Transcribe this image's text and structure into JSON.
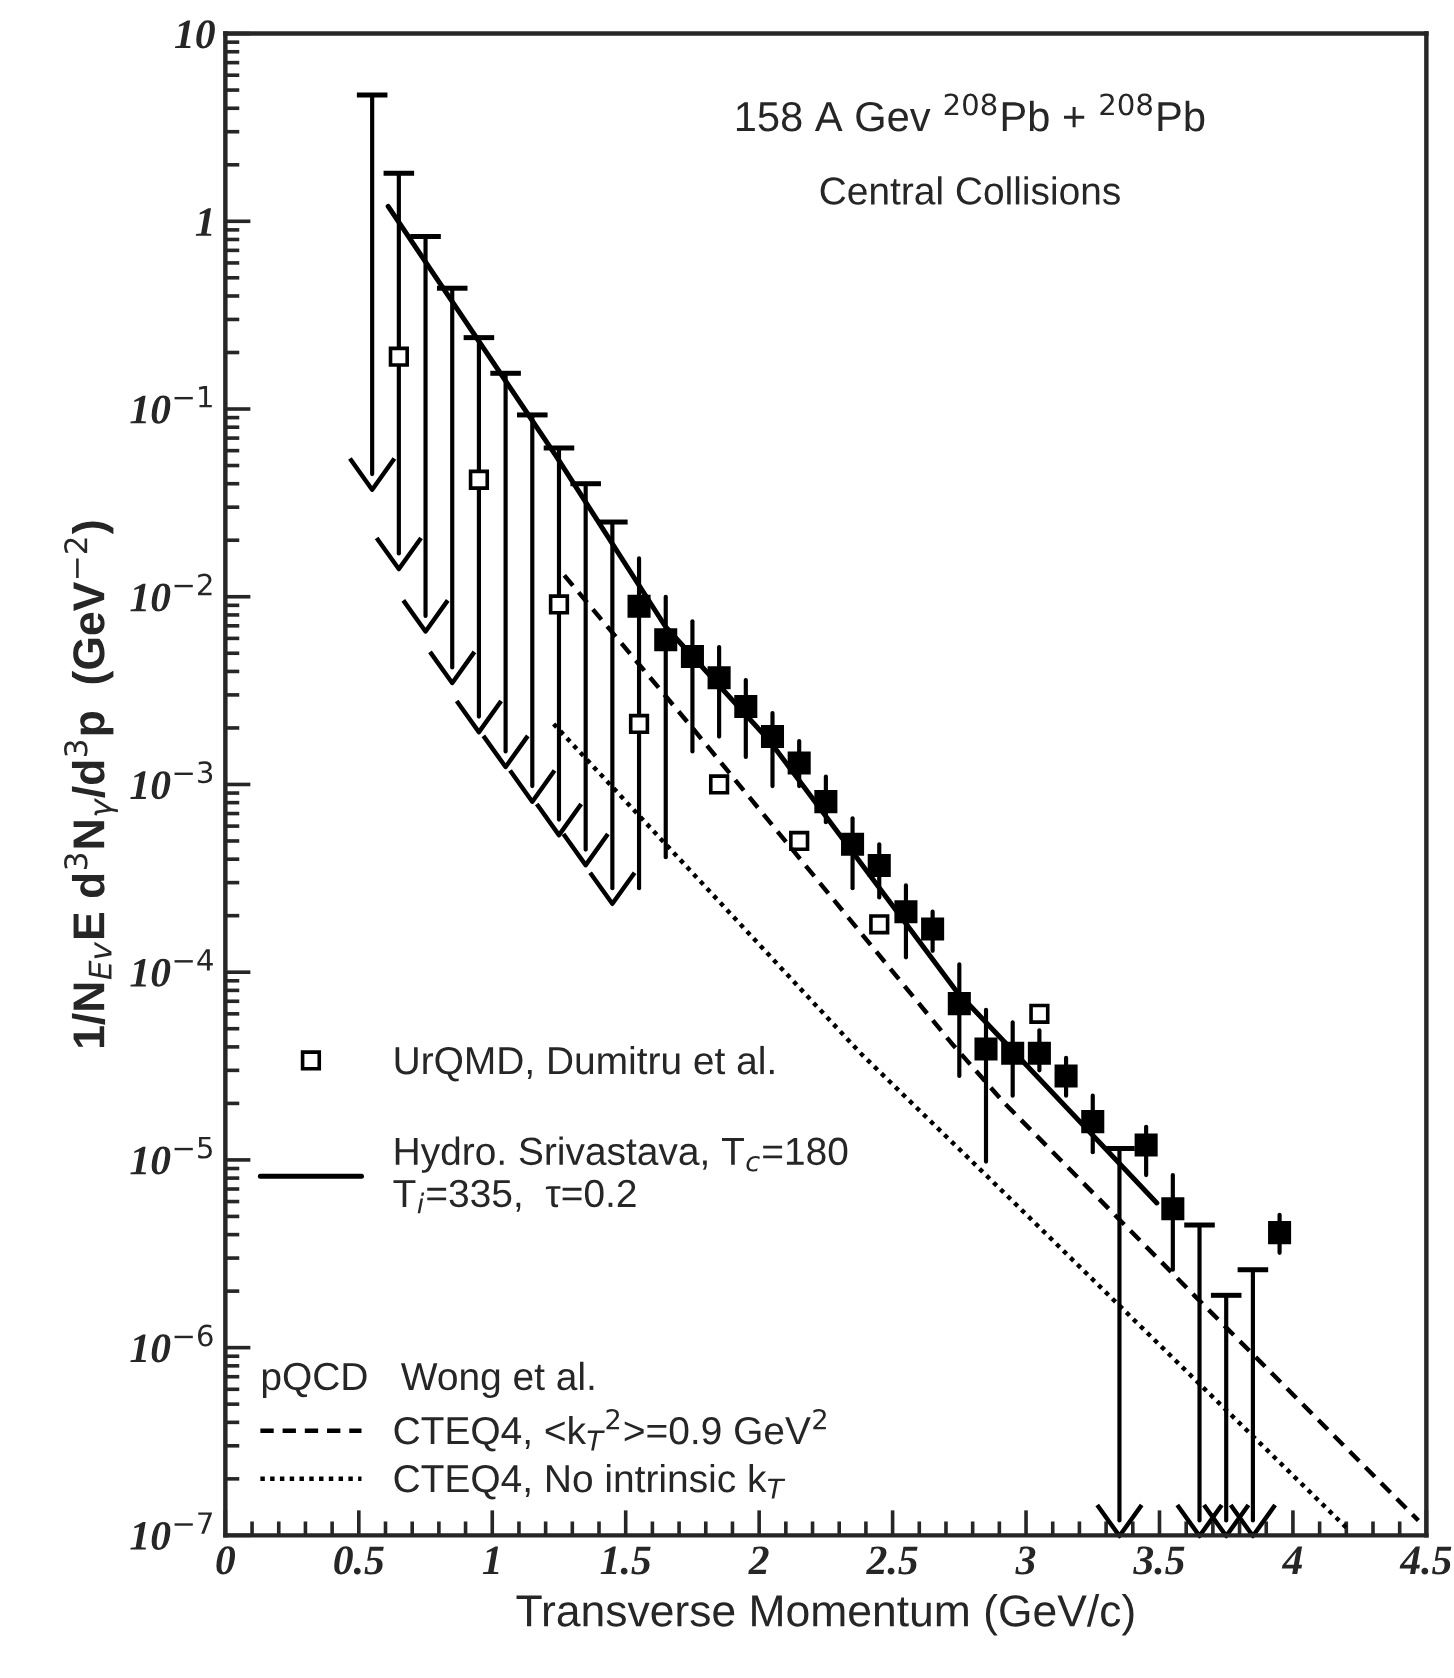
{
  "chart_data": {
    "type": "scatter",
    "title": "158 A Gev $^{208}$Pb + $^{208}$Pb",
    "subtitle": "Central Collisions",
    "xlabel": "Transverse Momentum (GeV/c)",
    "ylabel": "1/N$_{Ev}$E d$^{3}$N$_{γ}$/d$^{3}$p  (GeV$^{−2}$)",
    "annotations": [
      "pQCD   Wong et al."
    ],
    "log": "y",
    "xlim": [
      0,
      4.5
    ],
    "xticks": [
      0,
      0.5,
      1,
      1.5,
      2,
      2.5,
      3,
      3.5,
      4,
      4.5
    ],
    "ylim": [
      1e-07,
      10
    ],
    "yticks": [
      10,
      1,
      {
        "value": 0.1,
        "label": "10$^{−1}$"
      },
      {
        "value": 0.01,
        "label": "10$^{−2}$"
      },
      {
        "value": 0.001,
        "label": "10$^{−3}$"
      },
      {
        "value": 0.0001,
        "label": "10$^{−4}$"
      },
      {
        "value": 1e-05,
        "label": "10$^{−5}$"
      },
      {
        "value": 1e-06,
        "label": "10$^{−6}$"
      },
      {
        "value": 1e-07,
        "label": "10$^{−7}$"
      }
    ],
    "grid": false,
    "legend": "bottom left",
    "series": [
      {
        "marker": "square",
        "color": "#000000",
        "x": [
          1.55,
          1.65,
          1.75,
          1.85,
          1.95,
          2.05,
          2.15,
          2.25,
          2.35,
          2.45,
          2.55,
          2.65,
          2.75,
          2.85,
          2.95,
          3.05,
          3.15,
          3.25,
          3.45,
          3.55,
          3.95
        ],
        "values": [
          0.0089,
          0.0059,
          0.0048,
          0.0037,
          0.0026,
          0.0018,
          0.0013,
          0.00081,
          0.00048,
          0.00037,
          0.00021,
          0.00017,
          6.8e-05,
          3.9e-05,
          3.7e-05,
          3.7e-05,
          2.8e-05,
          1.6e-05,
          1.2e-05,
          5.5e-06,
          4.1e-06
        ],
        "errors": [
          [
            0.00028,
            0.016
          ],
          [
            0.00041,
            0.01
          ],
          [
            0.0015,
            0.0074
          ],
          [
            0.0018,
            0.0054
          ],
          [
            0.0014,
            0.0036
          ],
          [
            0.00098,
            0.0024
          ],
          [
            0.00098,
            0.0017
          ],
          [
            0.00063,
            0.0011
          ],
          [
            0.00028,
            0.00066
          ],
          [
            0.00025,
            0.00048
          ],
          [
            0.00012,
            0.00029
          ],
          [
            0.00013,
            0.00021
          ],
          [
            2.8e-05,
            0.00011
          ],
          [
            9.8e-06,
            6.3e-05
          ],
          [
            2.2e-05,
            5.4e-05
          ],
          [
            3e-05,
            4.9e-05
          ],
          [
            2.2e-05,
            3.5e-05
          ],
          [
            1.1e-05,
            2.2e-05
          ],
          [
            8.3e-06,
            1.5e-05
          ],
          [
            2.6e-06,
            8.3e-06
          ],
          [
            3.2e-06,
            5.1e-06
          ]
        ]
      },
      {
        "marker": "cross",
        "color": "#000000",
        "x": [
          0.55,
          0.65,
          0.75,
          0.85,
          0.95,
          1.05,
          1.15,
          1.25,
          1.35,
          1.45,
          3.35,
          3.65,
          3.75,
          3.85
        ],
        "values": [
          0.045,
          0.017,
          0.0079,
          0.0042,
          0.0023,
          0.0015,
          0.00098,
          0.00065,
          0.00045,
          0.00028,
          1.2e-07,
          1.2e-07,
          1.2e-07,
          1.2e-07
        ],
        "errors": [
          [
            0.045,
            4.7
          ],
          [
            0.017,
            1.8
          ],
          [
            0.0079,
            0.83
          ],
          [
            0.0042,
            0.44
          ],
          [
            0.0023,
            0.24
          ],
          [
            0.0015,
            0.155
          ],
          [
            0.00098,
            0.093
          ],
          [
            0.00065,
            0.062
          ],
          [
            0.00045,
            0.04
          ],
          [
            0.00028,
            0.025
          ],
          [
            1.2e-07,
            1.15e-05
          ],
          [
            1.2e-07,
            4.5e-06
          ],
          [
            1.2e-07,
            1.9e-06
          ],
          [
            1.2e-07,
            2.6e-06
          ]
        ]
      },
      {
        "marker": "square",
        "color": "#ffffff",
        "name": "UrQMD, Dumitru et al.",
        "x": [
          0.65,
          0.95,
          1.25,
          1.55,
          1.85,
          2.15,
          2.45,
          3.05
        ],
        "values": [
          0.19,
          0.042,
          0.0091,
          0.0021,
          0.001,
          0.0005,
          0.00018,
          6e-05
        ]
      },
      {
        "type": "line",
        "line_style": "solid",
        "color": "#000000",
        "name": "Hydro. Srivastava, T$_{c}$=180\nT$_{i}$=335,  τ=0.2",
        "x": [
          0.61,
          1.24,
          1.65,
          2.04,
          2.74,
          3.49
        ],
        "values": [
          1.2,
          0.056,
          0.0069,
          0.0017,
          7.9e-05,
          5.9e-06
        ]
      },
      {
        "type": "line",
        "line_style": "dashed",
        "color": "#000000",
        "name": "CTEQ4, <k$_{T}$$^{2}$>=0.9 GeV$^{2}$",
        "x": [
          1.27,
          1.75,
          2.72,
          2.92,
          3.63,
          4.47
        ],
        "values": [
          0.013,
          0.002,
          4.2e-05,
          2e-05,
          1.9e-06,
          1.2e-07
        ]
      },
      {
        "type": "line",
        "line_style": "dotted",
        "color": "#000000",
        "name": "CTEQ4, No intrinsic k$_{T}$",
        "x": [
          1.23,
          2.38,
          2.85,
          4.2
        ],
        "values": [
          0.0021,
          3.7e-05,
          8.3e-06,
          1.1e-07
        ]
      }
    ]
  }
}
